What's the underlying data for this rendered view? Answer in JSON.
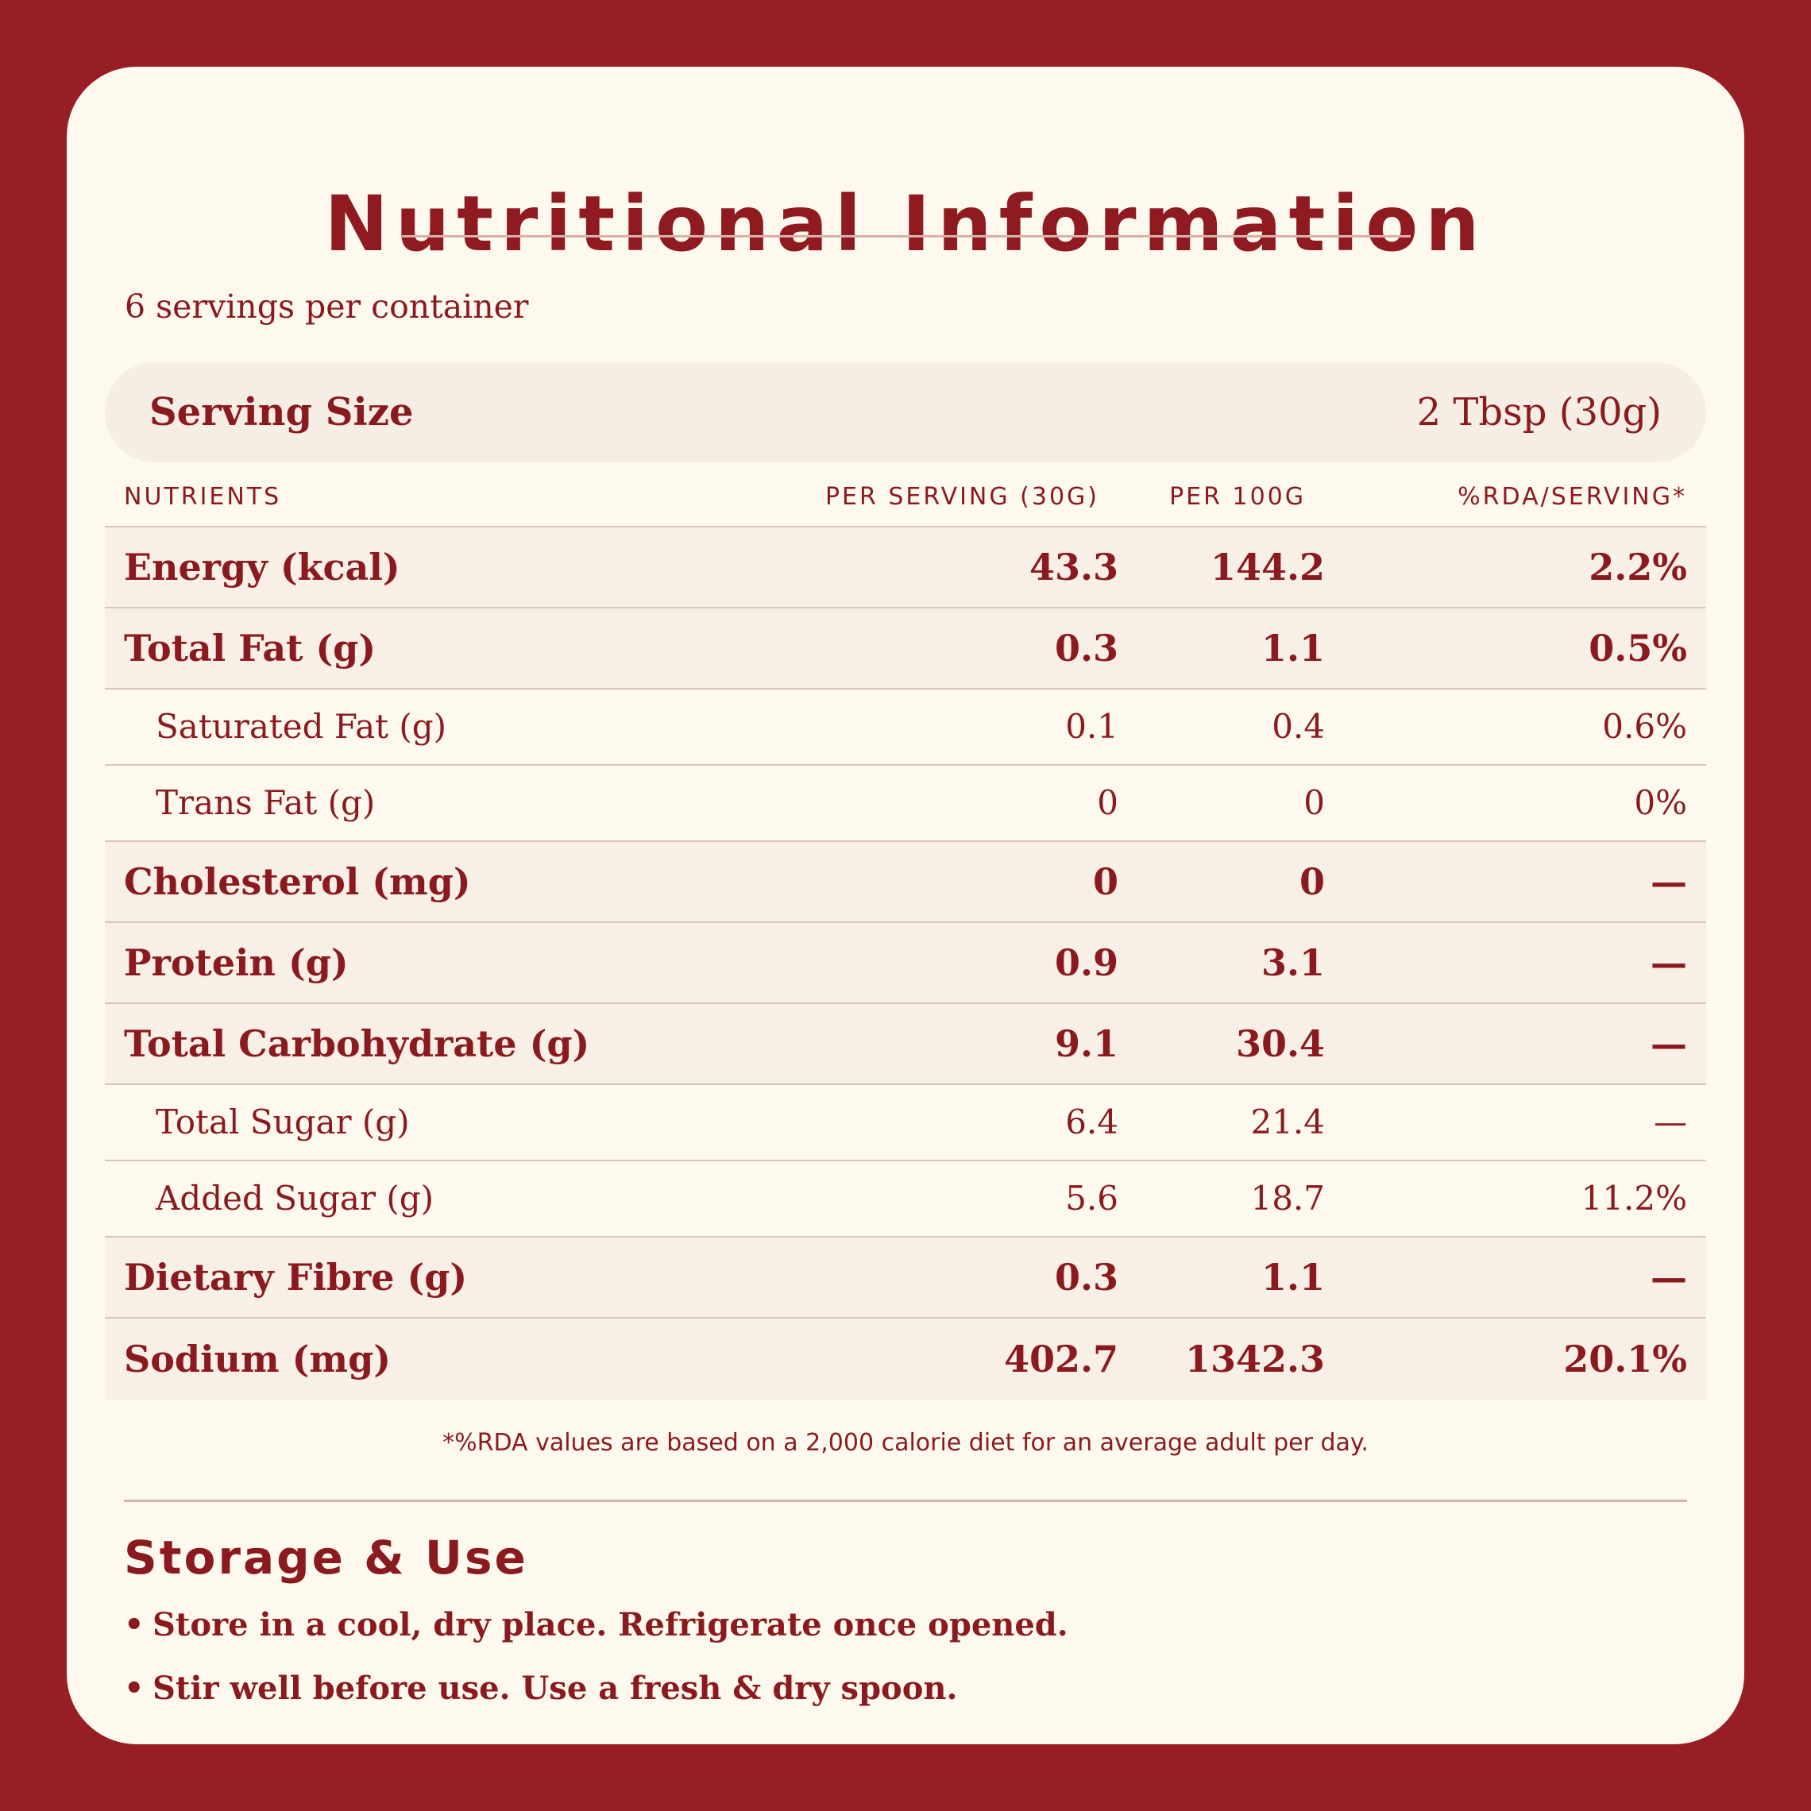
{
  "title": "Nutritional Information",
  "servings_per_container": "6 servings per container",
  "serving_size": {
    "label": "Serving Size",
    "value": "2 Tbsp (30g)"
  },
  "columns": {
    "nutrients": "NUTRIENTS",
    "per_serving": "PER SERVING (30G)",
    "per_100g": "PER 100G",
    "rda": "%RDA/SERVING*"
  },
  "rows": [
    {
      "name": "Energy (kcal)",
      "per_serving": "43.3",
      "per_100g": "144.2",
      "rda": "2.2%"
    },
    {
      "name": "Total Fat (g)",
      "per_serving": "0.3",
      "per_100g": "1.1",
      "rda": "0.5%"
    },
    {
      "name": "Saturated Fat (g)",
      "per_serving": "0.1",
      "per_100g": "0.4",
      "rda": "0.6%"
    },
    {
      "name": "Trans Fat (g)",
      "per_serving": "0",
      "per_100g": "0",
      "rda": "0%"
    },
    {
      "name": "Cholesterol (mg)",
      "per_serving": "0",
      "per_100g": "0",
      "rda": "—"
    },
    {
      "name": "Protein (g)",
      "per_serving": "0.9",
      "per_100g": "3.1",
      "rda": "—"
    },
    {
      "name": "Total Carbohydrate (g)",
      "per_serving": "9.1",
      "per_100g": "30.4",
      "rda": "—"
    },
    {
      "name": "Total Sugar (g)",
      "per_serving": "6.4",
      "per_100g": "21.4",
      "rda": "—"
    },
    {
      "name": "Added Sugar (g)",
      "per_serving": "5.6",
      "per_100g": "18.7",
      "rda": "11.2%"
    },
    {
      "name": "Dietary Fibre (g)",
      "per_serving": "0.3",
      "per_100g": "1.1",
      "rda": "—"
    },
    {
      "name": "Sodium (mg)",
      "per_serving": "402.7",
      "per_100g": "1342.3",
      "rda": "20.1%"
    }
  ],
  "footnote": "*%RDA values are based on a 2,000 calorie diet for an average adult per day.",
  "storage": {
    "title": "Storage & Use",
    "items": [
      "Store in a cool, dry place. Refrigerate once opened.",
      "Stir well before use. Use a fresh & dry spoon."
    ]
  },
  "colors": {
    "background": "#961e24",
    "card": "#fdf9ee",
    "text": "#8b1a1f",
    "row_highlight": "#f8efe6"
  }
}
